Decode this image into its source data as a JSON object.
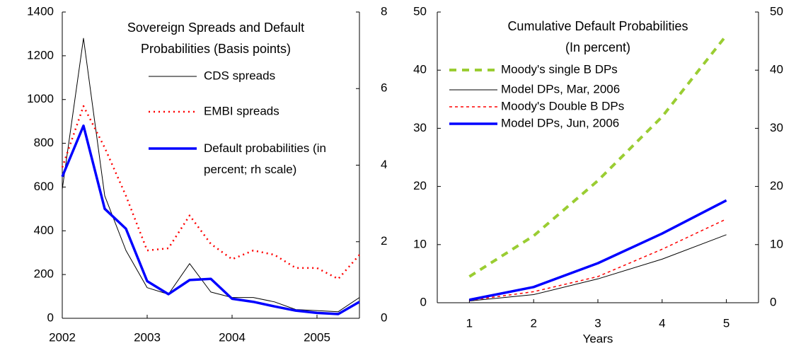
{
  "chart_data": [
    {
      "type": "line",
      "title": [
        "Sovereign Spreads and Default",
        "Probabilities (Basis points)"
      ],
      "x": [
        2002,
        2002.25,
        2002.5,
        2002.75,
        2003,
        2003.25,
        2003.5,
        2003.75,
        2004,
        2004.25,
        2004.5,
        2004.75,
        2005,
        2005.25,
        2005.5
      ],
      "xlim": [
        2002,
        2005.5
      ],
      "xticks": [
        2002,
        2003,
        2004,
        2005
      ],
      "ylim": [
        0,
        1400
      ],
      "yticks": [
        0,
        200,
        400,
        600,
        800,
        1000,
        1200,
        1400
      ],
      "y2lim": [
        0,
        8
      ],
      "y2ticks": [
        0,
        2,
        4,
        6,
        8
      ],
      "series": [
        {
          "name": "CDS spreads",
          "color": "#000000",
          "values": [
            590,
            1280,
            560,
            310,
            140,
            110,
            250,
            120,
            95,
            95,
            75,
            40,
            35,
            30,
            95
          ]
        },
        {
          "name": "EMBI spreads",
          "color": "#ff0000",
          "values": [
            690,
            970,
            780,
            560,
            310,
            320,
            470,
            340,
            270,
            310,
            290,
            230,
            230,
            180,
            290
          ]
        },
        {
          "name": "Default probabilities (in percent; rh scale)",
          "color": "#0000ff",
          "axis": "y2",
          "values": [
            3.7,
            5.03,
            2.86,
            2.34,
            0.97,
            0.63,
            1.0,
            1.03,
            0.51,
            0.43,
            0.31,
            0.2,
            0.14,
            0.11,
            0.43
          ]
        }
      ]
    },
    {
      "type": "line",
      "title": [
        "Cumulative Default Probabilities",
        "(In percent)"
      ],
      "x": [
        1,
        2,
        3,
        4,
        5
      ],
      "x_label": "Years",
      "xlim": [
        0.5,
        5.5
      ],
      "xticks": [
        1,
        2,
        3,
        4,
        5
      ],
      "ylim": [
        0,
        50
      ],
      "yticks": [
        0,
        10,
        20,
        30,
        40,
        50
      ],
      "y2lim": [
        0,
        50
      ],
      "y2ticks": [
        0,
        10,
        20,
        30,
        40,
        50
      ],
      "series": [
        {
          "name": "Moody's single B DPs",
          "color": "#9acd32",
          "values": [
            4.5,
            11.5,
            21,
            32,
            46
          ]
        },
        {
          "name": "Model DPs, Mar, 2006",
          "color": "#000000",
          "values": [
            0.3,
            1.4,
            4.1,
            7.5,
            11.7
          ]
        },
        {
          "name": "Moody's Double B DPs",
          "color": "#ff0000",
          "values": [
            0.4,
            1.9,
            4.5,
            9.2,
            14.4
          ]
        },
        {
          "name": "Model DPs, Jun, 2006",
          "color": "#0000ff",
          "values": [
            0.5,
            2.7,
            6.8,
            11.9,
            17.6
          ]
        }
      ]
    }
  ]
}
